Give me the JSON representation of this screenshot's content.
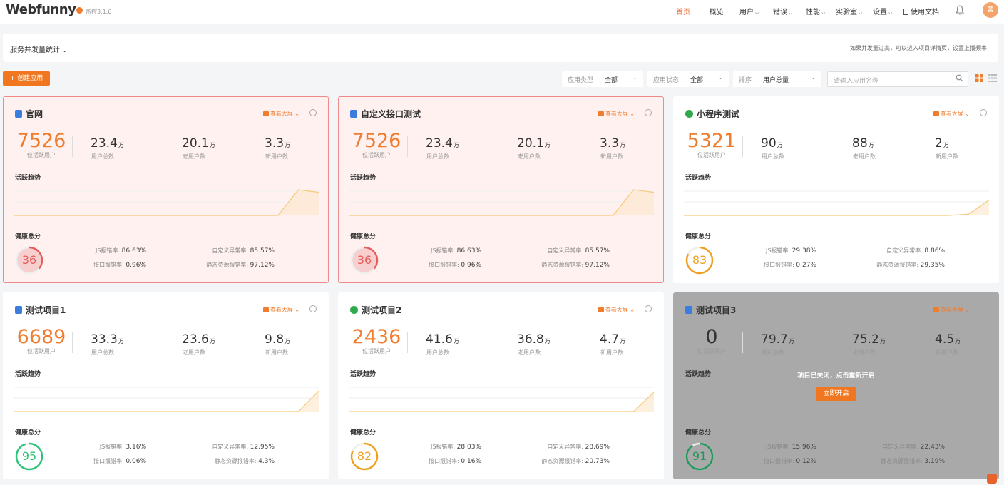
{
  "header": {
    "logo": "Webfunny",
    "version": "监控3.1.6",
    "nav": [
      {
        "label": "首页",
        "active": true,
        "dropdown": false
      },
      {
        "label": "概览",
        "active": false,
        "dropdown": false
      },
      {
        "label": "用户",
        "active": false,
        "dropdown": true
      },
      {
        "label": "错误",
        "active": false,
        "dropdown": true
      },
      {
        "label": "性能",
        "active": false,
        "dropdown": true
      },
      {
        "label": "实验室",
        "active": false,
        "dropdown": true
      },
      {
        "label": "设置",
        "active": false,
        "dropdown": true
      },
      {
        "label": "使用文档",
        "active": false,
        "dropdown": false
      }
    ],
    "avatar_text": "营"
  },
  "concurrency": {
    "title": "服务并发量统计",
    "hint": "如果并发量过高，可以进入项目详情页，设置上报频率"
  },
  "toolbar": {
    "create_label": "+ 创建应用",
    "filters": [
      {
        "label": "应用类型",
        "value": "全部"
      },
      {
        "label": "应用状态",
        "value": "全部"
      },
      {
        "label": "排序",
        "value": "用户总量"
      }
    ],
    "search_placeholder": "请输入应用名称"
  },
  "labels": {
    "active_users": "位活跃用户",
    "total_users": "用户总数",
    "old_users": "老用户数",
    "new_users": "新用户数",
    "trend": "活跃趋势",
    "health": "健康总分",
    "big_screen": "查看大屏",
    "js_rate": "JS报错率:",
    "custom_rate": "自定义异常率:",
    "api_rate": "接口报错率:",
    "static_rate": "静态资源报错率:",
    "wan": "万"
  },
  "projects": [
    {
      "name": "官网",
      "icon": "html5-icon",
      "state": "warn",
      "active": "7526",
      "total": "23.4",
      "old": "20.1",
      "new": "3.3",
      "trend": [
        0,
        0,
        0,
        0,
        0,
        0,
        0,
        0,
        0,
        0,
        0,
        0,
        0,
        0,
        1,
        0.9
      ],
      "score": "36",
      "score_color": "#e85c5c",
      "js": "86.63%",
      "custom": "85.57%",
      "api": "0.96%",
      "static": "97.12%"
    },
    {
      "name": "自定义接口测试",
      "icon": "html5-icon",
      "state": "warn",
      "active": "7526",
      "total": "23.4",
      "old": "20.1",
      "new": "3.3",
      "trend": [
        0,
        0,
        0,
        0,
        0,
        0,
        0,
        0,
        0,
        0,
        0,
        0,
        0,
        0,
        1,
        0.9
      ],
      "score": "36",
      "score_color": "#e85c5c",
      "js": "86.63%",
      "custom": "85.57%",
      "api": "0.96%",
      "static": "97.12%"
    },
    {
      "name": "小程序测试",
      "icon": "miniprogram-icon",
      "state": "normal",
      "active": "5321",
      "total": "90",
      "old": "88",
      "new": "2",
      "trend": [
        0,
        0,
        0,
        0,
        0,
        0,
        0,
        0,
        0,
        0,
        0,
        0,
        0,
        0,
        0.05,
        0.6
      ],
      "score": "83",
      "score_color": "#f0a020",
      "js": "29.38%",
      "custom": "8.86%",
      "api": "0.27%",
      "static": "29.35%"
    },
    {
      "name": "测试项目1",
      "icon": "html5-icon",
      "state": "normal",
      "active": "6689",
      "total": "33.3",
      "old": "23.6",
      "new": "9.8",
      "trend": [
        0,
        0,
        0,
        0,
        0,
        0,
        0,
        0,
        0,
        0,
        0,
        0,
        0,
        0,
        0,
        0.8
      ],
      "score": "95",
      "score_color": "#2ec47a",
      "js": "3.16%",
      "custom": "12.95%",
      "api": "0.06%",
      "static": "4.3%"
    },
    {
      "name": "测试项目2",
      "icon": "miniprogram-icon",
      "state": "normal",
      "active": "2436",
      "total": "41.6",
      "old": "36.8",
      "new": "4.7",
      "trend": [
        0,
        0,
        0,
        0,
        0,
        0,
        0,
        0,
        0,
        0,
        0,
        0,
        0,
        0,
        0,
        0.75
      ],
      "score": "82",
      "score_color": "#f0a020",
      "js": "28.03%",
      "custom": "28.69%",
      "api": "0.16%",
      "static": "20.73%"
    },
    {
      "name": "测试项目3",
      "icon": "html5-icon",
      "state": "off",
      "active": "0",
      "total": "79.7",
      "old": "75.2",
      "new": "4.5",
      "trend": [],
      "score": "91",
      "score_color": "#1d9a5a",
      "js": "15.96%",
      "custom": "22.43%",
      "api": "0.12%",
      "static": "3.19%",
      "closed_text": "项目已关闭，点击重新开启",
      "reopen_label": "立即开启"
    }
  ]
}
